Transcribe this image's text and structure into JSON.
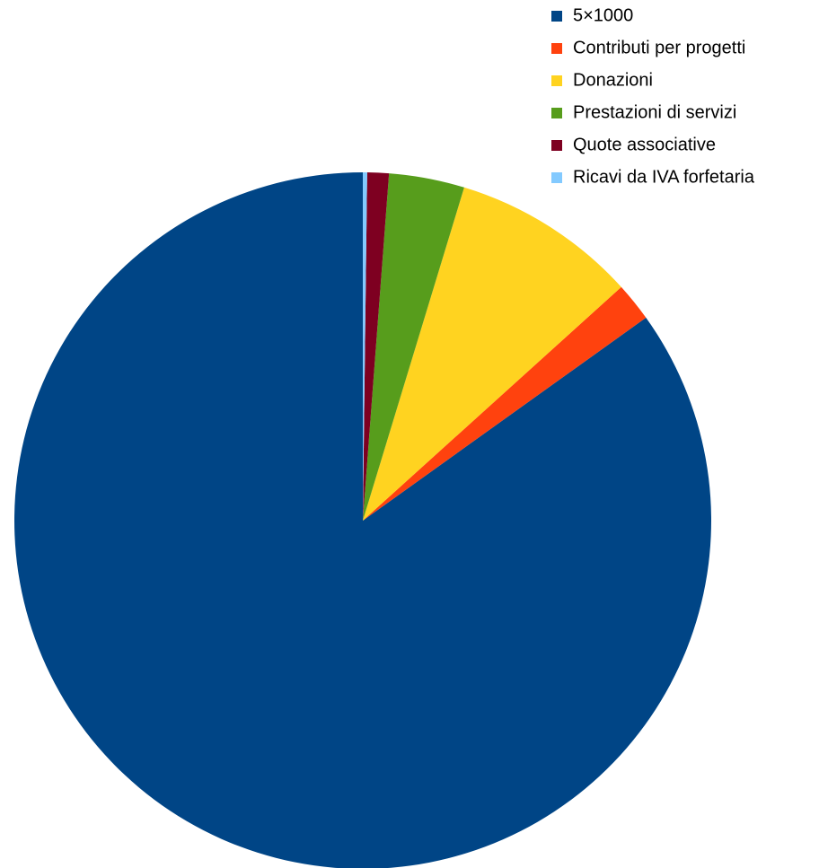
{
  "chart_data": {
    "type": "pie",
    "categories": [
      "5×1000",
      "Contributi per progetti",
      "Donazioni",
      "Prestazioni di servizi",
      "Quote associative",
      "Ricavi da IVA forfetaria"
    ],
    "values": [
      84.9,
      1.8,
      8.6,
      3.5,
      1.0,
      0.2
    ],
    "colors": [
      "#004586",
      "#ff420e",
      "#ffd320",
      "#579d1c",
      "#7e0021",
      "#83caff"
    ],
    "direction": "counterclockwise",
    "legend": "top-right"
  }
}
